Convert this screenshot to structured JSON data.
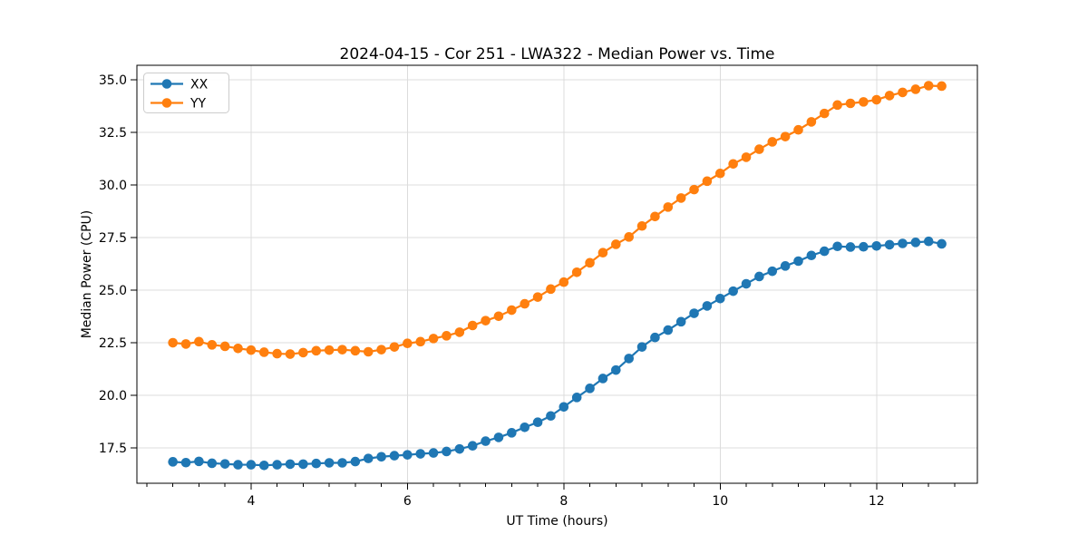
{
  "chart_data": {
    "type": "line",
    "title": "2024-04-15 - Cor 251 - LWA322 - Median Power vs. Time",
    "xlabel": "UT Time (hours)",
    "ylabel": "Median Power (CPU)",
    "xlim": [
      2.54,
      13.29
    ],
    "ylim": [
      15.82,
      35.69
    ],
    "xticks": [
      4,
      6,
      8,
      10,
      12
    ],
    "yticks": [
      17.5,
      20.0,
      22.5,
      25.0,
      27.5,
      30.0,
      32.5,
      35.0
    ],
    "x_minor_tick_step": 0.33333,
    "grid": true,
    "legend_position": "upper-left",
    "marker": "circle",
    "x": [
      3.0,
      3.1667,
      3.3333,
      3.5,
      3.6667,
      3.8333,
      4.0,
      4.1667,
      4.3333,
      4.5,
      4.6667,
      4.8333,
      5.0,
      5.1667,
      5.3333,
      5.5,
      5.6667,
      5.8333,
      6.0,
      6.1667,
      6.3333,
      6.5,
      6.6667,
      6.8333,
      7.0,
      7.1667,
      7.3333,
      7.5,
      7.6667,
      7.8333,
      8.0,
      8.1667,
      8.3333,
      8.5,
      8.6667,
      8.8333,
      9.0,
      9.1667,
      9.3333,
      9.5,
      9.6667,
      9.8333,
      10.0,
      10.1667,
      10.3333,
      10.5,
      10.6667,
      10.8333,
      11.0,
      11.1667,
      11.3333,
      11.5,
      11.6667,
      11.8333,
      12.0,
      12.1667,
      12.3333,
      12.5,
      12.6667,
      12.8333
    ],
    "series": [
      {
        "name": "XX",
        "color": "#1f77b4",
        "values": [
          16.84,
          16.8,
          16.86,
          16.77,
          16.74,
          16.7,
          16.7,
          16.67,
          16.7,
          16.73,
          16.73,
          16.76,
          16.79,
          16.79,
          16.85,
          17.0,
          17.08,
          17.13,
          17.17,
          17.22,
          17.26,
          17.33,
          17.45,
          17.6,
          17.82,
          18.0,
          18.22,
          18.48,
          18.72,
          19.02,
          19.45,
          19.9,
          20.33,
          20.8,
          21.2,
          21.75,
          22.3,
          22.75,
          23.1,
          23.5,
          23.9,
          24.25,
          24.6,
          24.95,
          25.3,
          25.65,
          25.9,
          26.15,
          26.38,
          26.65,
          26.85,
          27.08,
          27.05,
          27.06,
          27.1,
          27.16,
          27.22,
          27.27,
          27.32,
          27.2
        ]
      },
      {
        "name": "YY",
        "color": "#ff7f0e",
        "values": [
          22.5,
          22.44,
          22.55,
          22.4,
          22.33,
          22.23,
          22.15,
          22.05,
          21.98,
          21.96,
          22.03,
          22.12,
          22.15,
          22.17,
          22.12,
          22.07,
          22.17,
          22.3,
          22.47,
          22.55,
          22.7,
          22.83,
          23.0,
          23.32,
          23.55,
          23.76,
          24.05,
          24.35,
          24.67,
          25.05,
          25.38,
          25.85,
          26.3,
          26.78,
          27.18,
          27.53,
          28.05,
          28.5,
          28.95,
          29.38,
          29.78,
          30.18,
          30.55,
          31.0,
          31.32,
          31.7,
          32.05,
          32.3,
          32.62,
          33.0,
          33.4,
          33.8,
          33.88,
          33.95,
          34.05,
          34.25,
          34.4,
          34.55,
          34.72,
          34.7
        ]
      }
    ],
    "style": {
      "grid_color": "#dcdcdc",
      "spine_color": "#000000",
      "background": "#ffffff",
      "legend_border": "#cccccc"
    }
  }
}
